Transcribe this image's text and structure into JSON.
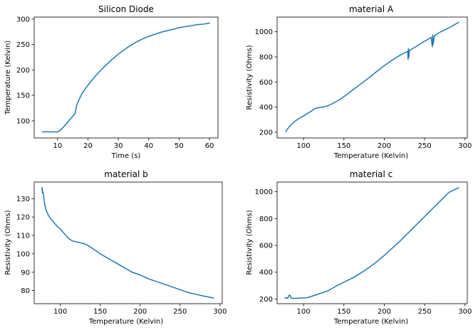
{
  "colors": {
    "series": "#1f77b4",
    "axes": "#000000",
    "background": "#ffffff"
  },
  "chart_data": [
    {
      "type": "line",
      "title": "Silicon Diode",
      "xlabel": "Time (s)",
      "ylabel": "Temperature (Kelvin)",
      "xlim": [
        2.3,
        62.8
      ],
      "ylim": [
        66.2,
        303.9
      ],
      "xticks": [
        10,
        20,
        30,
        40,
        50,
        60
      ],
      "yticks": [
        100,
        150,
        200,
        250,
        300
      ],
      "grid": false,
      "series": [
        {
          "x": [
            5,
            6,
            8,
            10,
            11,
            12,
            13,
            14,
            15,
            15.8,
            16,
            16.3,
            17,
            18,
            19,
            20,
            22,
            24,
            26,
            28,
            30,
            32,
            34,
            36,
            38,
            40,
            42,
            44,
            46,
            48,
            50,
            52,
            54,
            56,
            58,
            60
          ],
          "y": [
            78,
            78.5,
            78,
            78,
            82,
            88,
            95,
            102,
            109,
            115,
            122,
            131,
            141,
            153,
            162,
            170,
            185,
            198,
            210,
            221,
            231,
            240,
            248,
            255,
            261,
            266,
            270,
            274,
            277,
            280,
            283,
            285,
            287,
            289,
            290,
            292
          ]
        }
      ]
    },
    {
      "type": "line",
      "title": "material A",
      "xlabel": "Temperature (Kelvin)",
      "ylabel": "Resistivity (Ohms)",
      "xlim": [
        67.3,
        302.8
      ],
      "ylim": [
        154,
        1117
      ],
      "xticks": [
        100,
        150,
        200,
        250,
        300
      ],
      "yticks": [
        200,
        400,
        600,
        800,
        1000
      ],
      "grid": false,
      "series": [
        {
          "x": [
            78,
            80,
            85,
            90,
            95,
            100,
            105,
            110,
            112,
            115,
            120,
            125,
            130,
            135,
            140,
            145,
            150,
            160,
            170,
            180,
            190,
            200,
            210,
            220,
            229,
            229.5,
            230,
            230.5,
            231,
            240,
            250,
            258,
            259.5,
            260,
            260.5,
            262,
            270,
            280,
            292
          ],
          "y": [
            205,
            225,
            262,
            290,
            312,
            330,
            350,
            368,
            380,
            390,
            397,
            402,
            410,
            425,
            443,
            460,
            483,
            532,
            580,
            628,
            680,
            730,
            775,
            815,
            845,
            780,
            865,
            800,
            850,
            885,
            925,
            955,
            880,
            975,
            900,
            968,
            1000,
            1030,
            1075
          ]
        }
      ]
    },
    {
      "type": "line",
      "title": "material b",
      "xlabel": "Temperature (Kelvin)",
      "ylabel": "Resistivity (Ohms)",
      "xlim": [
        67.3,
        302.8
      ],
      "ylim": [
        72.9,
        139
      ],
      "xticks": [
        100,
        150,
        200,
        250,
        300
      ],
      "yticks": [
        80,
        90,
        100,
        110,
        120,
        130
      ],
      "grid": false,
      "series": [
        {
          "x": [
            77,
            77.3,
            77.6,
            78,
            79,
            80,
            82,
            85,
            88,
            92,
            96,
            100,
            105,
            110,
            115,
            120,
            125,
            130,
            135,
            140,
            150,
            160,
            170,
            180,
            190,
            200,
            210,
            220,
            230,
            240,
            250,
            260,
            270,
            280,
            292
          ],
          "y": [
            135,
            136,
            133,
            134,
            132,
            128,
            124,
            121,
            119,
            117,
            115,
            113.5,
            111,
            108.5,
            107,
            106.5,
            106,
            105.5,
            104.5,
            103,
            100,
            97.5,
            95,
            92.5,
            90,
            88.5,
            86.5,
            85,
            83.5,
            82,
            80.5,
            79,
            78,
            77,
            76
          ]
        }
      ]
    },
    {
      "type": "line",
      "title": "material c",
      "xlabel": "Temperature (Kelvin)",
      "ylabel": "Resistivity (Ohms)",
      "xlim": [
        67.3,
        302.8
      ],
      "ylim": [
        165,
        1072
      ],
      "xticks": [
        100,
        150,
        200,
        250,
        300
      ],
      "yticks": [
        200,
        400,
        600,
        800,
        1000
      ],
      "grid": false,
      "series": [
        {
          "x": [
            77,
            78,
            79,
            80,
            81,
            82,
            83,
            84,
            85,
            87,
            90,
            95,
            100,
            105,
            110,
            120,
            130,
            140,
            150,
            160,
            170,
            180,
            190,
            200,
            210,
            220,
            230,
            240,
            250,
            260,
            270,
            280,
            292
          ],
          "y": [
            208,
            206,
            210,
            205,
            212,
            225,
            230,
            218,
            207,
            205,
            205,
            207,
            208,
            210,
            220,
            240,
            260,
            295,
            325,
            355,
            390,
            430,
            475,
            525,
            580,
            635,
            695,
            755,
            815,
            875,
            935,
            995,
            1030
          ]
        }
      ]
    }
  ]
}
